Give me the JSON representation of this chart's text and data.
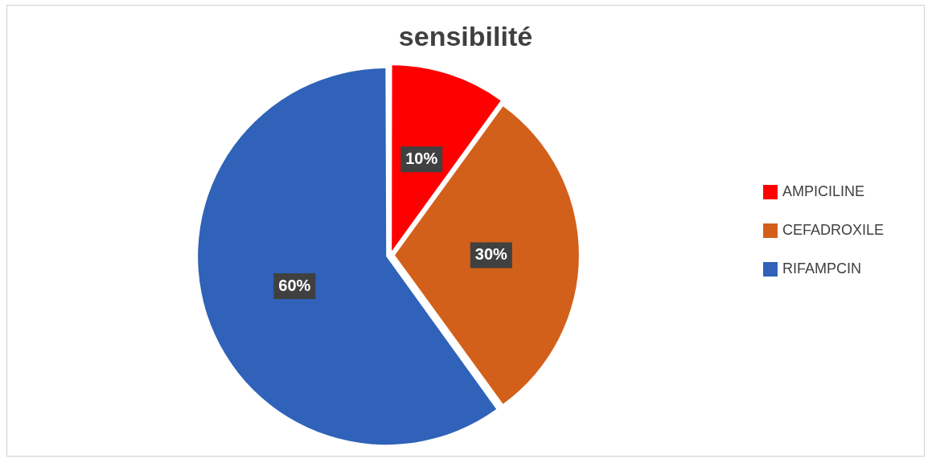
{
  "chart_data": {
    "type": "pie",
    "title": "sensibilité",
    "categories": [
      "AMPICILINE",
      "CEFADROXILE",
      "RIFAMPCIN"
    ],
    "values": [
      10,
      30,
      60
    ],
    "colors": [
      "#ff0000",
      "#d2601a",
      "#2f62b8"
    ],
    "value_labels": [
      "10%",
      "30%",
      "60%"
    ],
    "legend": "right"
  }
}
